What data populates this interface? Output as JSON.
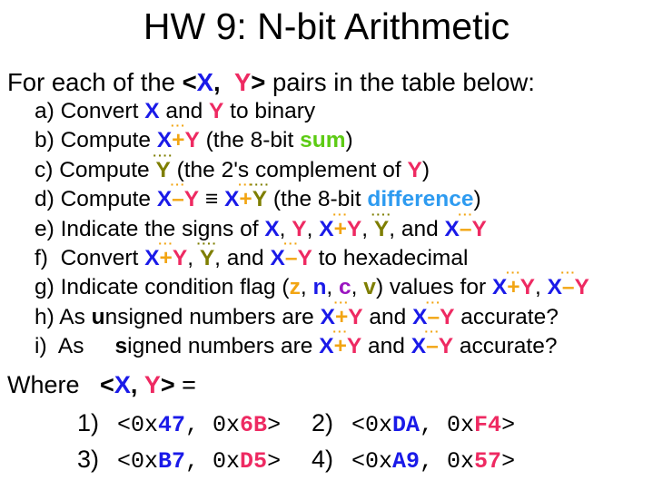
{
  "title": "HW 9: N-bit Arithmetic",
  "colors": {
    "x": "#1a1ae8",
    "y": "#ee2a62",
    "operator": "#f2a513",
    "complement": "#7e7e00",
    "sum": "#5dcb14",
    "difference": "#2e9bf0",
    "flag_z": "#f2a513",
    "flag_n": "#1a1ae8",
    "flag_c": "#9a15c0",
    "flag_v": "#7e7e00",
    "text": "#000000",
    "background": "#ffffff"
  },
  "lines": [
    {
      "name": "intro-line",
      "cls": "intro",
      "segs": [
        {
          "t": "For each of the ",
          "s": "k"
        },
        {
          "t": "<",
          "s": "b"
        },
        {
          "t": "X",
          "s": "x"
        },
        {
          "t": ",  ",
          "s": "b"
        },
        {
          "t": "Y",
          "s": "y"
        },
        {
          "t": ">",
          "s": "b"
        },
        {
          "t": " pairs in the table below:",
          "s": "k"
        }
      ]
    },
    {
      "name": "item-a",
      "cls": "item",
      "segs": [
        {
          "t": "a) Convert ",
          "s": "k"
        },
        {
          "t": "X",
          "s": "x"
        },
        {
          "t": " and ",
          "s": "k"
        },
        {
          "t": "Y",
          "s": "y"
        },
        {
          "t": " to binary",
          "s": "k"
        }
      ]
    },
    {
      "name": "item-b",
      "cls": "item",
      "segs": [
        {
          "t": "b) Compute ",
          "s": "k"
        },
        {
          "t": "X",
          "s": "x"
        },
        {
          "t": "+",
          "s": "op",
          "d": "op",
          "dt": "···"
        },
        {
          "t": "Y",
          "s": "y"
        },
        {
          "t": " (the 8-bit ",
          "s": "k"
        },
        {
          "t": "sum",
          "s": "sum"
        },
        {
          "t": ")",
          "s": "k"
        }
      ]
    },
    {
      "name": "item-c",
      "cls": "item",
      "segs": [
        {
          "t": "c) Compute ",
          "s": "k"
        },
        {
          "t": "Y",
          "s": "yc",
          "d": "yc",
          "dt": "····"
        },
        {
          "t": " (the 2's complement of ",
          "s": "k"
        },
        {
          "t": "Y",
          "s": "y"
        },
        {
          "t": ")",
          "s": "k"
        }
      ]
    },
    {
      "name": "item-d",
      "cls": "item",
      "segs": [
        {
          "t": "d) Compute ",
          "s": "k"
        },
        {
          "t": "X",
          "s": "x"
        },
        {
          "t": "–",
          "s": "op",
          "d": "op",
          "dt": "···"
        },
        {
          "t": "Y",
          "s": "y"
        },
        {
          "t": " ≡ ",
          "s": "b"
        },
        {
          "t": "X",
          "s": "x"
        },
        {
          "t": "+",
          "s": "op",
          "d": "op",
          "dt": "···"
        },
        {
          "t": "Y",
          "s": "yc",
          "d": "yc",
          "dt": "····"
        },
        {
          "t": " (the 8-bit ",
          "s": "k"
        },
        {
          "t": "difference",
          "s": "diff"
        },
        {
          "t": ")",
          "s": "k"
        }
      ]
    },
    {
      "name": "item-e",
      "cls": "item",
      "segs": [
        {
          "t": "e) Indicate the signs of ",
          "s": "k"
        },
        {
          "t": "X",
          "s": "x"
        },
        {
          "t": ", ",
          "s": "k"
        },
        {
          "t": "Y",
          "s": "y"
        },
        {
          "t": ", ",
          "s": "k"
        },
        {
          "t": "X",
          "s": "x"
        },
        {
          "t": "+",
          "s": "op",
          "d": "op",
          "dt": "···"
        },
        {
          "t": "Y",
          "s": "y"
        },
        {
          "t": ", ",
          "s": "k"
        },
        {
          "t": "Y",
          "s": "yc",
          "d": "yc",
          "dt": "····"
        },
        {
          "t": ", and ",
          "s": "k"
        },
        {
          "t": "X",
          "s": "x"
        },
        {
          "t": "–",
          "s": "op",
          "d": "op",
          "dt": "···"
        },
        {
          "t": "Y",
          "s": "y"
        }
      ]
    },
    {
      "name": "item-f",
      "cls": "item",
      "segs": [
        {
          "t": "f)  Convert ",
          "s": "k"
        },
        {
          "t": "X",
          "s": "x"
        },
        {
          "t": "+",
          "s": "op",
          "d": "op",
          "dt": "···"
        },
        {
          "t": "Y",
          "s": "y"
        },
        {
          "t": ", ",
          "s": "k"
        },
        {
          "t": "Y",
          "s": "yc",
          "d": "yc",
          "dt": "····"
        },
        {
          "t": ", and ",
          "s": "k"
        },
        {
          "t": "X",
          "s": "x"
        },
        {
          "t": "–",
          "s": "op",
          "d": "op",
          "dt": "···"
        },
        {
          "t": "Y",
          "s": "y"
        },
        {
          "t": " to hexadecimal",
          "s": "k"
        }
      ]
    },
    {
      "name": "item-g",
      "cls": "item",
      "segs": [
        {
          "t": "g) Indicate condition flag (",
          "s": "k"
        },
        {
          "t": "z",
          "s": "fz"
        },
        {
          "t": ", ",
          "s": "k"
        },
        {
          "t": "n",
          "s": "fn"
        },
        {
          "t": ", ",
          "s": "k"
        },
        {
          "t": "c",
          "s": "fc"
        },
        {
          "t": ", ",
          "s": "k"
        },
        {
          "t": "v",
          "s": "fv"
        },
        {
          "t": ") values for ",
          "s": "k"
        },
        {
          "t": "X",
          "s": "x"
        },
        {
          "t": "+",
          "s": "op",
          "d": "op",
          "dt": "···"
        },
        {
          "t": "Y",
          "s": "y"
        },
        {
          "t": ", ",
          "s": "k"
        },
        {
          "t": "X",
          "s": "x"
        },
        {
          "t": "–",
          "s": "op",
          "d": "op",
          "dt": "···"
        },
        {
          "t": "Y",
          "s": "y"
        }
      ]
    },
    {
      "name": "item-h",
      "cls": "item",
      "segs": [
        {
          "t": "h) As ",
          "s": "k"
        },
        {
          "t": "u",
          "s": "b"
        },
        {
          "t": "nsigned numbers are ",
          "s": "k"
        },
        {
          "t": "X",
          "s": "x"
        },
        {
          "t": "+",
          "s": "op",
          "d": "op",
          "dt": "···"
        },
        {
          "t": "Y",
          "s": "y"
        },
        {
          "t": " and ",
          "s": "k"
        },
        {
          "t": "X",
          "s": "x"
        },
        {
          "t": "–",
          "s": "op",
          "d": "op",
          "dt": "···"
        },
        {
          "t": "Y",
          "s": "y"
        },
        {
          "t": " accurate?",
          "s": "k"
        }
      ]
    },
    {
      "name": "item-i",
      "cls": "item",
      "segs": [
        {
          "t": "i)  As     ",
          "s": "k"
        },
        {
          "t": "s",
          "s": "b"
        },
        {
          "t": "igned numbers are ",
          "s": "k"
        },
        {
          "t": "X",
          "s": "x"
        },
        {
          "t": "+",
          "s": "op",
          "d": "op",
          "dt": "···"
        },
        {
          "t": "Y",
          "s": "y"
        },
        {
          "t": " and ",
          "s": "k"
        },
        {
          "t": "X",
          "s": "x"
        },
        {
          "t": "–",
          "s": "op",
          "d": "op",
          "dt": "···"
        },
        {
          "t": "Y",
          "s": "y"
        },
        {
          "t": " accurate?",
          "s": "k"
        }
      ]
    },
    {
      "name": "where-line",
      "cls": "where",
      "segs": [
        {
          "t": "Where   ",
          "s": "k"
        },
        {
          "t": "<",
          "s": "b"
        },
        {
          "t": "X",
          "s": "x"
        },
        {
          "t": ", ",
          "s": "b"
        },
        {
          "t": "Y",
          "s": "y"
        },
        {
          "t": ">",
          "s": "b"
        },
        {
          "t": " =",
          "s": "k"
        }
      ]
    }
  ],
  "pairs": {
    "prefix": "<0x",
    "mid": ", 0x",
    "suffix": ">",
    "rows": [
      [
        {
          "n": "1)",
          "x": "47",
          "y": "6B"
        },
        {
          "n": "2)",
          "x": "DA",
          "y": "F4"
        }
      ],
      [
        {
          "n": "3)",
          "x": "B7",
          "y": "D5"
        },
        {
          "n": "4)",
          "x": "A9",
          "y": "57"
        }
      ]
    ]
  }
}
